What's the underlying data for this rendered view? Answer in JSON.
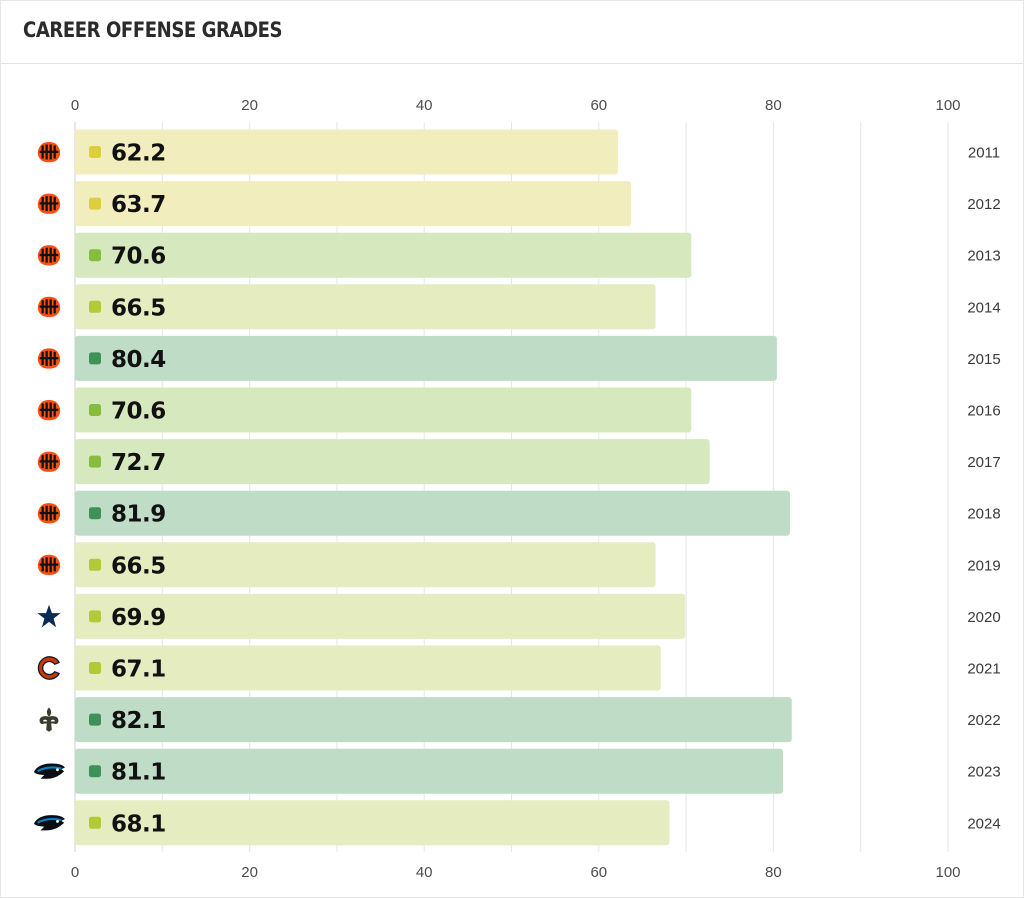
{
  "header": {
    "title": "CAREER OFFENSE GRADES"
  },
  "chart_data": {
    "type": "bar",
    "orientation": "horizontal",
    "title": "CAREER OFFENSE GRADES",
    "xlim": [
      0,
      100
    ],
    "xticks": [
      0,
      20,
      40,
      60,
      80,
      100
    ],
    "grid": true,
    "categories": [
      "2011",
      "2012",
      "2013",
      "2014",
      "2015",
      "2016",
      "2017",
      "2018",
      "2019",
      "2020",
      "2021",
      "2022",
      "2023",
      "2024"
    ],
    "values": [
      62.2,
      63.7,
      70.6,
      66.5,
      80.4,
      70.6,
      72.7,
      81.9,
      66.5,
      69.9,
      67.1,
      82.1,
      81.1,
      68.1
    ],
    "teams": [
      "bengals",
      "bengals",
      "bengals",
      "bengals",
      "bengals",
      "bengals",
      "bengals",
      "bengals",
      "bengals",
      "cowboys",
      "bears",
      "saints",
      "panthers",
      "panthers"
    ],
    "team_icons": [
      "bengals-logo-icon",
      "cowboys-logo-icon",
      "bears-logo-icon",
      "saints-logo-icon",
      "panthers-logo-icon"
    ],
    "grade_colors": [
      {
        "min": 0,
        "max": 65,
        "bar": "#f1edbd",
        "dot": "#dccf3e"
      },
      {
        "min": 65,
        "max": 70,
        "bar": "#e5ecc0",
        "dot": "#b2c93b"
      },
      {
        "min": 70,
        "max": 80,
        "bar": "#d6e8bd",
        "dot": "#86bd3d"
      },
      {
        "min": 80,
        "max": 101,
        "bar": "#bfdcc6",
        "dot": "#3e9157"
      }
    ]
  }
}
